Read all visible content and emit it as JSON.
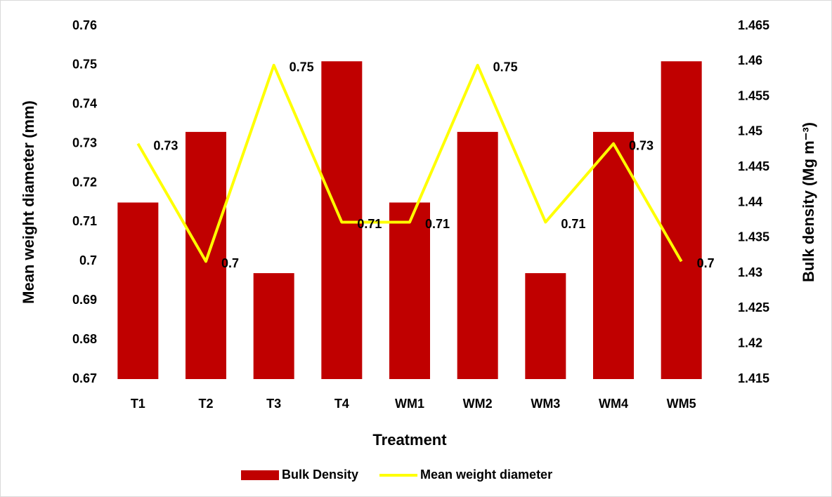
{
  "chart_data": {
    "type": "bar-line",
    "xlabel": "Treatment",
    "ylabel": "Mean weight diameter (mm)",
    "y2label": "Bulk density (Mg m⁻³)",
    "categories": [
      "T1",
      "T2",
      "T3",
      "T4",
      "WM1",
      "WM2",
      "WM3",
      "WM4",
      "WM5"
    ],
    "series": [
      {
        "name": "Bulk Density",
        "type": "bar",
        "color": "#c00000",
        "axis": "y2",
        "values": [
          1.44,
          1.45,
          1.43,
          1.46,
          1.44,
          1.45,
          1.43,
          1.45,
          1.46
        ]
      },
      {
        "name": "Mean weight diameter",
        "type": "line",
        "color": "#ffff00",
        "values": [
          0.73,
          0.7,
          0.75,
          0.71,
          0.71,
          0.75,
          0.71,
          0.73,
          0.7
        ]
      }
    ],
    "ylim": [
      0.67,
      0.76
    ],
    "yticks": [
      0.67,
      0.68,
      0.69,
      0.7,
      0.71,
      0.72,
      0.73,
      0.74,
      0.75,
      0.76
    ],
    "y2lim": [
      1.415,
      1.465
    ],
    "y2ticks": [
      1.415,
      1.42,
      1.425,
      1.43,
      1.435,
      1.44,
      1.445,
      1.45,
      1.455,
      1.46,
      1.465
    ],
    "legend": "bottom"
  }
}
